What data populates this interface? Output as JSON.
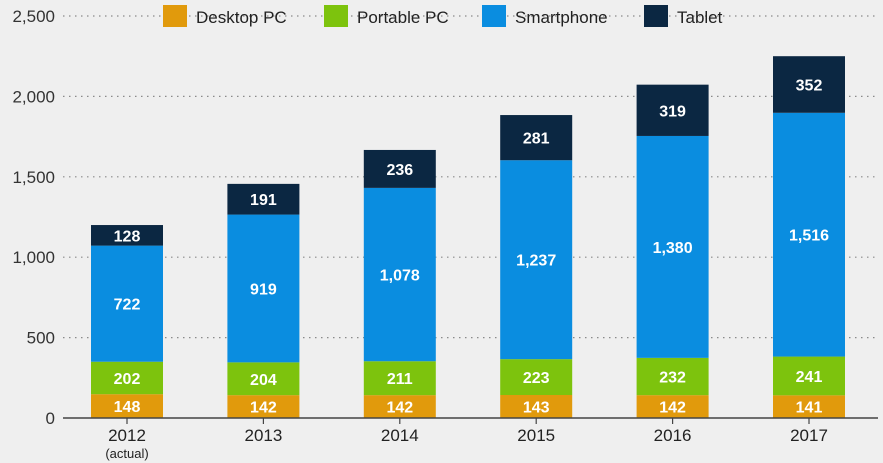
{
  "chart_data": {
    "type": "bar",
    "stacked": true,
    "categories": [
      "2012",
      "2013",
      "2014",
      "2015",
      "2016",
      "2017"
    ],
    "category_sublabels": [
      "(actual)",
      "",
      "",
      "",
      "",
      ""
    ],
    "series": [
      {
        "name": "Desktop PC",
        "color": "#e19a0c",
        "values": [
          148,
          142,
          142,
          143,
          142,
          141
        ]
      },
      {
        "name": "Portable PC",
        "color": "#7dc30d",
        "values": [
          202,
          204,
          211,
          223,
          232,
          241
        ]
      },
      {
        "name": "Smartphone",
        "color": "#0a8de0",
        "values": [
          722,
          919,
          1078,
          1237,
          1380,
          1516
        ]
      },
      {
        "name": "Tablet",
        "color": "#0b2742",
        "values": [
          128,
          191,
          236,
          281,
          319,
          352
        ]
      }
    ],
    "value_labels": [
      [
        "148",
        "142",
        "142",
        "143",
        "142",
        "141"
      ],
      [
        "202",
        "204",
        "211",
        "223",
        "232",
        "241"
      ],
      [
        "722",
        "919",
        "1,078",
        "1,237",
        "1,380",
        "1,516"
      ],
      [
        "128",
        "191",
        "236",
        "281",
        "319",
        "352"
      ]
    ],
    "ylim": [
      0,
      2500
    ],
    "yticks": [
      0,
      500,
      1000,
      1500,
      2000,
      2500
    ],
    "ytick_labels": [
      "0",
      "500",
      "1,000",
      "1,500",
      "2,000",
      "2,500"
    ],
    "grid": true,
    "legend": "top"
  }
}
